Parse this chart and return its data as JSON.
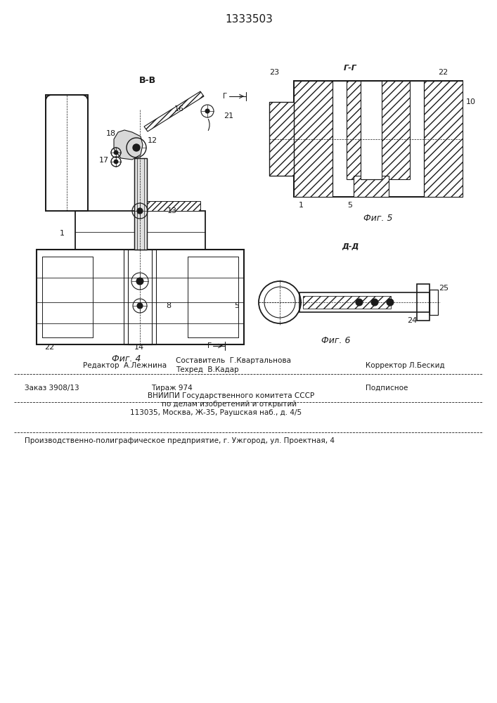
{
  "title": "1333503",
  "fig4_label": "Фиг. 4",
  "fig5_label": "Фиг. 5",
  "fig6_label": "Фиг. 6",
  "BB": "В-В",
  "GG": "Г-Г",
  "DD": "Д-Д",
  "G": "Г",
  "footer_editor": "Редактор  А.Лежнина",
  "footer_comp": "Составитель  Г.Квартальнова",
  "footer_corr": "Корректор Л.Бескид",
  "footer_tech": "Техред  В.Кадар",
  "footer_order": "Заказ 3908/13",
  "footer_print": "Тираж 974",
  "footer_sub": "Подписное",
  "footer_v1": "ВНИИПИ Государственного комитета СССР",
  "footer_v2": "по делам изобретений и открытий",
  "footer_v3": "113035, Москва, Ж-35, Раушская наб., д. 4/5",
  "footer_prod": "Производственно-полиграфическое предприятие, г. Ужгород, ул. Проектная, 4"
}
